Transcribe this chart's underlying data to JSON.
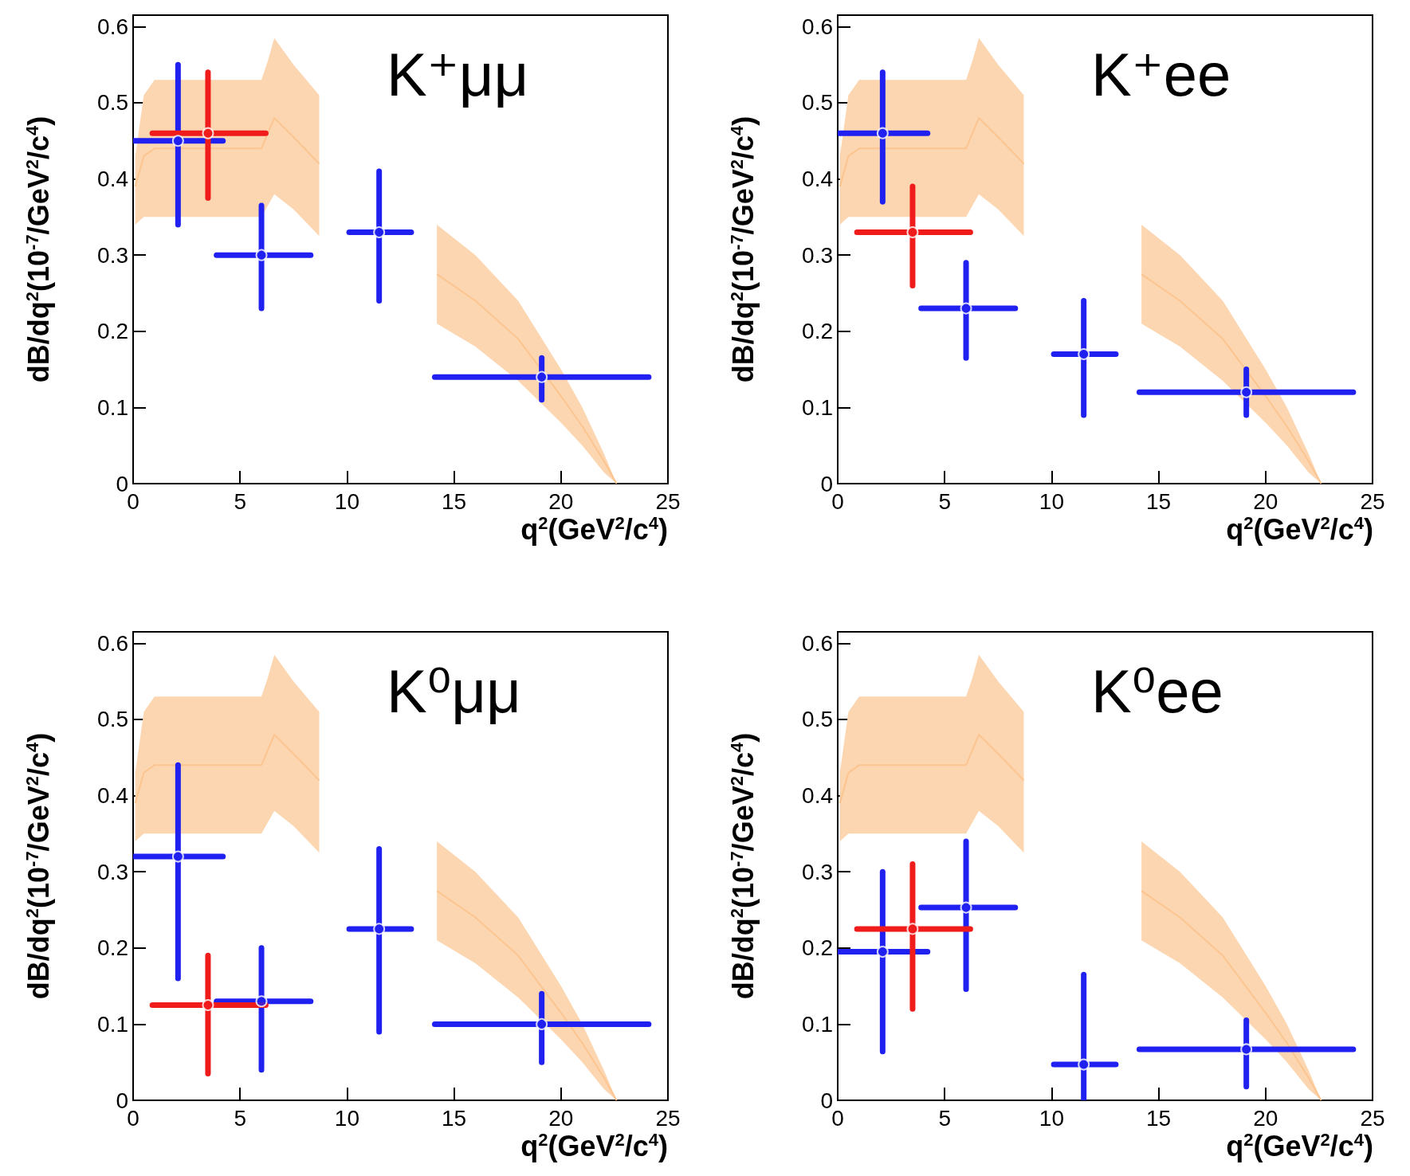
{
  "chart_data": [
    {
      "type": "scatter",
      "title": "K⁺μμ",
      "xlabel": "q$^{2}$(GeV$^{2}$/c$^{4}$)",
      "ylabel": "dB/dq$^{2}$(10$^{-7}$/GeV$^{2}$/c$^{4}$)",
      "xlim": [
        0,
        25
      ],
      "ylim": [
        0,
        0.615
      ],
      "xticks": [
        0,
        5,
        10,
        15,
        20,
        25
      ],
      "yticks": [
        0,
        0.1,
        0.2,
        0.3,
        0.4,
        0.5,
        0.6
      ],
      "marker": "circle",
      "grid": false,
      "series": [
        {
          "type": "line",
          "marker": "none",
          "color": "#fcc590",
          "x": [
            0.1,
            0.5,
            1,
            3,
            6,
            6.3,
            6.6,
            7.5,
            8.7
          ],
          "values": [
            0.39,
            0.43,
            0.44,
            0.44,
            0.44,
            0.46,
            0.48,
            0.455,
            0.42
          ],
          "lower": [
            0.34,
            0.35,
            0.35,
            0.35,
            0.35,
            0.365,
            0.38,
            0.36,
            0.325
          ],
          "upper": [
            0.43,
            0.51,
            0.53,
            0.53,
            0.53,
            0.555,
            0.585,
            0.55,
            0.51
          ]
        },
        {
          "type": "line",
          "marker": "none",
          "color": "#fcc590",
          "x": [
            14.2,
            16,
            18,
            20,
            21,
            22,
            22.6
          ],
          "values": [
            0.275,
            0.24,
            0.19,
            0.115,
            0.075,
            0.03,
            0
          ],
          "lower": [
            0.21,
            0.18,
            0.135,
            0.08,
            0.05,
            0.015,
            0
          ],
          "upper": [
            0.34,
            0.3,
            0.24,
            0.15,
            0.1,
            0.04,
            0
          ]
        },
        {
          "color": "#2020f0",
          "x": [
            2.1,
            6.0,
            11.5,
            19.1
          ],
          "values": [
            0.45,
            0.3,
            0.33,
            0.14
          ],
          "errors": [
            [
              0.34,
              0.55
            ],
            [
              0.23,
              0.365
            ],
            [
              0.24,
              0.41
            ],
            [
              0.11,
              0.165
            ]
          ],
          "xerrors": [
            [
              0,
              4.2
            ],
            [
              3.9,
              8.3
            ],
            [
              10.1,
              13
            ],
            [
              14.1,
              24.1
            ]
          ]
        },
        {
          "color": "#f01c1c",
          "x": [
            3.5
          ],
          "values": [
            0.46
          ],
          "errors": [
            [
              0.375,
              0.54
            ]
          ],
          "xerrors": [
            [
              0.9,
              6.2
            ]
          ]
        }
      ]
    },
    {
      "type": "scatter",
      "title": "K⁺ee",
      "xlabel": "q$^{2}$(GeV$^{2}$/c$^{4}$)",
      "ylabel": "dB/dq$^{2}$(10$^{-7}$/GeV$^{2}$/c$^{4}$)",
      "xlim": [
        0,
        25
      ],
      "ylim": [
        0,
        0.615
      ],
      "xticks": [
        0,
        5,
        10,
        15,
        20,
        25
      ],
      "yticks": [
        0,
        0.1,
        0.2,
        0.3,
        0.4,
        0.5,
        0.6
      ],
      "marker": "circle",
      "grid": false,
      "series": [
        {
          "type": "line",
          "marker": "none",
          "color": "#fcc590",
          "x": [
            0.1,
            0.5,
            1,
            3,
            6,
            6.3,
            6.6,
            7.5,
            8.7
          ],
          "values": [
            0.39,
            0.43,
            0.44,
            0.44,
            0.44,
            0.46,
            0.48,
            0.455,
            0.42
          ],
          "lower": [
            0.34,
            0.35,
            0.35,
            0.35,
            0.35,
            0.365,
            0.38,
            0.36,
            0.325
          ],
          "upper": [
            0.43,
            0.51,
            0.53,
            0.53,
            0.53,
            0.555,
            0.585,
            0.55,
            0.51
          ]
        },
        {
          "type": "line",
          "marker": "none",
          "color": "#fcc590",
          "x": [
            14.2,
            16,
            18,
            20,
            21,
            22,
            22.6
          ],
          "values": [
            0.275,
            0.24,
            0.19,
            0.115,
            0.075,
            0.03,
            0
          ],
          "lower": [
            0.21,
            0.18,
            0.135,
            0.08,
            0.05,
            0.015,
            0
          ],
          "upper": [
            0.34,
            0.3,
            0.24,
            0.15,
            0.1,
            0.04,
            0
          ]
        },
        {
          "color": "#2020f0",
          "x": [
            2.1,
            6.0,
            11.5,
            19.1
          ],
          "values": [
            0.46,
            0.23,
            0.17,
            0.12
          ],
          "errors": [
            [
              0.37,
              0.54
            ],
            [
              0.165,
              0.29
            ],
            [
              0.09,
              0.24
            ],
            [
              0.09,
              0.15
            ]
          ],
          "xerrors": [
            [
              0,
              4.2
            ],
            [
              3.9,
              8.3
            ],
            [
              10.1,
              13
            ],
            [
              14.1,
              24.1
            ]
          ]
        },
        {
          "color": "#f01c1c",
          "x": [
            3.5
          ],
          "values": [
            0.33
          ],
          "errors": [
            [
              0.26,
              0.39
            ]
          ],
          "xerrors": [
            [
              0.9,
              6.2
            ]
          ]
        }
      ]
    },
    {
      "type": "scatter",
      "title": "K⁰μμ",
      "xlabel": "q$^{2}$(GeV$^{2}$/c$^{4}$)",
      "ylabel": "dB/dq$^{2}$(10$^{-7}$/GeV$^{2}$/c$^{4}$)",
      "xlim": [
        0,
        25
      ],
      "ylim": [
        0,
        0.615
      ],
      "xticks": [
        0,
        5,
        10,
        15,
        20,
        25
      ],
      "yticks": [
        0,
        0.1,
        0.2,
        0.3,
        0.4,
        0.5,
        0.6
      ],
      "marker": "circle",
      "grid": false,
      "series": [
        {
          "type": "line",
          "marker": "none",
          "color": "#fcc590",
          "x": [
            0.1,
            0.5,
            1,
            3,
            6,
            6.3,
            6.6,
            7.5,
            8.7
          ],
          "values": [
            0.39,
            0.43,
            0.44,
            0.44,
            0.44,
            0.46,
            0.48,
            0.455,
            0.42
          ],
          "lower": [
            0.34,
            0.35,
            0.35,
            0.35,
            0.35,
            0.365,
            0.38,
            0.36,
            0.325
          ],
          "upper": [
            0.43,
            0.51,
            0.53,
            0.53,
            0.53,
            0.555,
            0.585,
            0.55,
            0.51
          ]
        },
        {
          "type": "line",
          "marker": "none",
          "color": "#fcc590",
          "x": [
            14.2,
            16,
            18,
            20,
            21,
            22,
            22.6
          ],
          "values": [
            0.275,
            0.24,
            0.19,
            0.115,
            0.075,
            0.03,
            0
          ],
          "lower": [
            0.21,
            0.18,
            0.135,
            0.08,
            0.05,
            0.015,
            0
          ],
          "upper": [
            0.34,
            0.3,
            0.24,
            0.15,
            0.1,
            0.04,
            0
          ]
        },
        {
          "color": "#2020f0",
          "x": [
            2.1,
            6.0,
            11.5,
            19.1
          ],
          "values": [
            0.32,
            0.13,
            0.225,
            0.1
          ],
          "errors": [
            [
              0.16,
              0.44
            ],
            [
              0.04,
              0.2
            ],
            [
              0.09,
              0.33
            ],
            [
              0.05,
              0.14
            ]
          ],
          "xerrors": [
            [
              0,
              4.2
            ],
            [
              3.9,
              8.3
            ],
            [
              10.1,
              13
            ],
            [
              14.1,
              24.1
            ]
          ]
        },
        {
          "color": "#f01c1c",
          "x": [
            3.5
          ],
          "values": [
            0.125
          ],
          "errors": [
            [
              0.035,
              0.19
            ]
          ],
          "xerrors": [
            [
              0.9,
              6.2
            ]
          ]
        }
      ]
    },
    {
      "type": "scatter",
      "title": "K⁰ee",
      "xlabel": "q$^{2}$(GeV$^{2}$/c$^{4}$)",
      "ylabel": "dB/dq$^{2}$(10$^{-7}$/GeV$^{2}$/c$^{4}$)",
      "xlim": [
        0,
        25
      ],
      "ylim": [
        0,
        0.615
      ],
      "xticks": [
        0,
        5,
        10,
        15,
        20,
        25
      ],
      "yticks": [
        0,
        0.1,
        0.2,
        0.3,
        0.4,
        0.5,
        0.6
      ],
      "marker": "circle",
      "grid": false,
      "series": [
        {
          "type": "line",
          "marker": "none",
          "color": "#fcc590",
          "x": [
            0.1,
            0.5,
            1,
            3,
            6,
            6.3,
            6.6,
            7.5,
            8.7
          ],
          "values": [
            0.39,
            0.43,
            0.44,
            0.44,
            0.44,
            0.46,
            0.48,
            0.455,
            0.42
          ],
          "lower": [
            0.34,
            0.35,
            0.35,
            0.35,
            0.35,
            0.365,
            0.38,
            0.36,
            0.325
          ],
          "upper": [
            0.43,
            0.51,
            0.53,
            0.53,
            0.53,
            0.555,
            0.585,
            0.55,
            0.51
          ]
        },
        {
          "type": "line",
          "marker": "none",
          "color": "#fcc590",
          "x": [
            14.2,
            16,
            18,
            20,
            21,
            22,
            22.6
          ],
          "values": [
            0.275,
            0.24,
            0.19,
            0.115,
            0.075,
            0.03,
            0
          ],
          "lower": [
            0.21,
            0.18,
            0.135,
            0.08,
            0.05,
            0.015,
            0
          ],
          "upper": [
            0.34,
            0.3,
            0.24,
            0.15,
            0.1,
            0.04,
            0
          ]
        },
        {
          "color": "#2020f0",
          "x": [
            2.1,
            6.0,
            11.5,
            19.1
          ],
          "values": [
            0.195,
            0.253,
            0.047,
            0.067
          ],
          "errors": [
            [
              0.064,
              0.3
            ],
            [
              0.146,
              0.34
            ],
            [
              0,
              0.165
            ],
            [
              0.018,
              0.105
            ]
          ],
          "xerrors": [
            [
              0,
              4.2
            ],
            [
              3.9,
              8.3
            ],
            [
              10.1,
              13
            ],
            [
              14.1,
              24.1
            ]
          ]
        },
        {
          "color": "#f01c1c",
          "x": [
            3.5
          ],
          "values": [
            0.225
          ],
          "errors": [
            [
              0.12,
              0.31
            ]
          ],
          "xerrors": [
            [
              0.9,
              6.2
            ]
          ]
        }
      ]
    }
  ]
}
